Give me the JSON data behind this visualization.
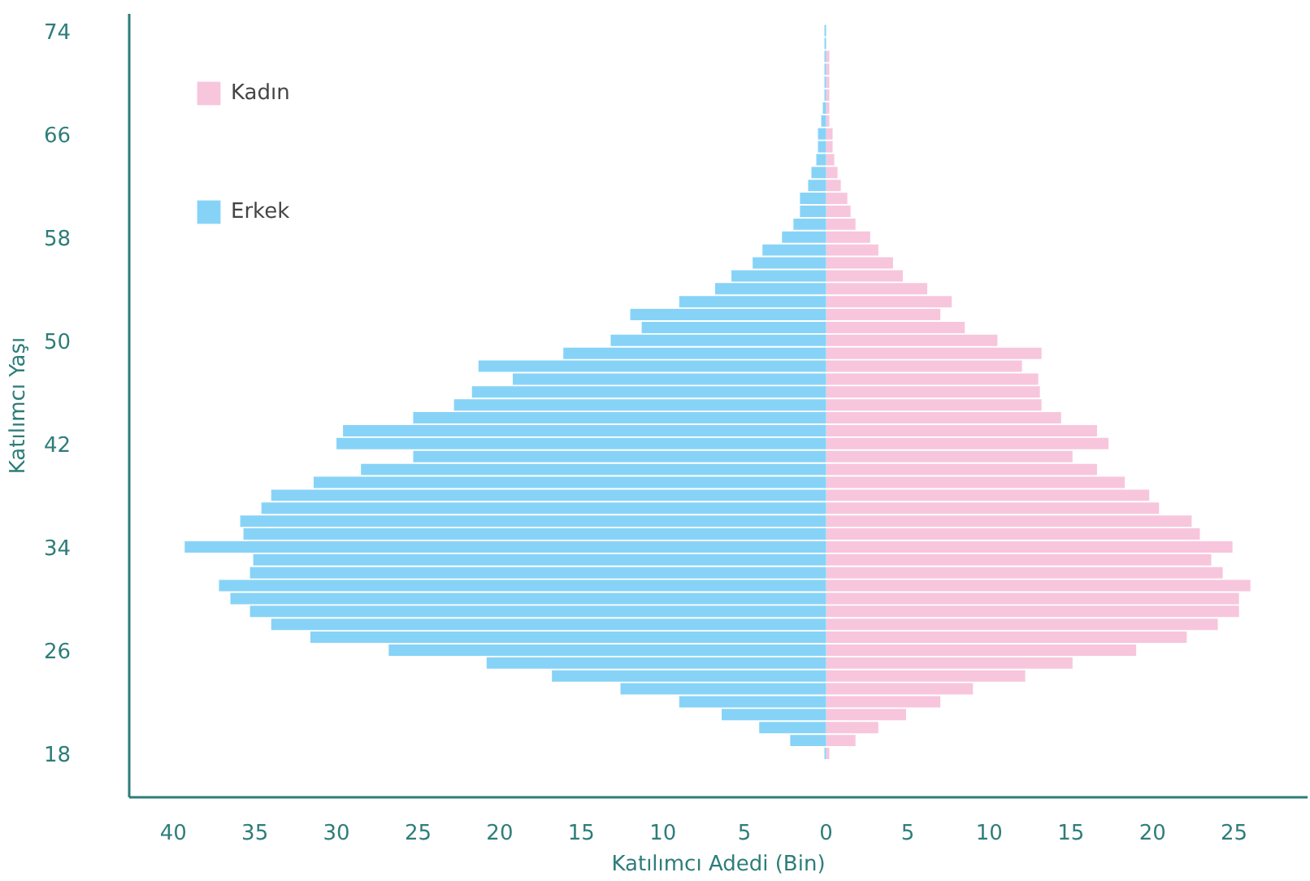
{
  "chart_data": {
    "type": "bar",
    "orientation": "horizontal",
    "xlabel": "Katılımcı Adedi (Bin)",
    "ylabel": "Katılımcı Yaşı",
    "x": [
      18,
      19,
      20,
      21,
      22,
      23,
      24,
      25,
      26,
      27,
      28,
      29,
      30,
      31,
      32,
      33,
      34,
      35,
      36,
      37,
      38,
      39,
      40,
      41,
      42,
      43,
      44,
      45,
      46,
      47,
      48,
      49,
      50,
      51,
      52,
      53,
      54,
      55,
      56,
      57,
      58,
      59,
      60,
      61,
      62,
      63,
      64,
      65,
      66,
      67,
      68,
      69,
      70,
      71,
      72,
      73,
      74
    ],
    "series": [
      {
        "name": "Kadın",
        "color": "#f7c6dc",
        "values": [
          0.2,
          1.8,
          3.2,
          4.9,
          7.0,
          9.0,
          12.2,
          15.1,
          19.0,
          22.1,
          24.0,
          25.3,
          25.3,
          26.0,
          24.3,
          23.6,
          24.9,
          22.9,
          22.4,
          20.4,
          19.8,
          18.3,
          16.6,
          15.1,
          17.3,
          16.6,
          14.4,
          13.2,
          13.1,
          13.0,
          12.0,
          13.2,
          10.5,
          8.5,
          7.0,
          7.7,
          6.2,
          4.7,
          4.1,
          3.2,
          2.7,
          1.8,
          1.5,
          1.3,
          0.9,
          0.7,
          0.5,
          0.4,
          0.4,
          0.2,
          0.2,
          0.2,
          0.2,
          0.2,
          0.2,
          null,
          null
        ]
      },
      {
        "name": "Erkek",
        "color": "#87d3f7",
        "values": [
          -0.1,
          -2.2,
          -4.1,
          -6.4,
          -9.0,
          -12.6,
          -16.8,
          -20.8,
          -26.8,
          -31.6,
          -34.0,
          -35.3,
          -36.5,
          -37.2,
          -35.3,
          -35.1,
          -39.3,
          -35.7,
          -35.9,
          -34.6,
          -34.0,
          -31.4,
          -28.5,
          -25.3,
          -30.0,
          -29.6,
          -25.3,
          -22.8,
          -21.7,
          -19.2,
          -21.3,
          -16.1,
          -13.2,
          -11.3,
          -12.0,
          -9.0,
          -6.8,
          -5.8,
          -4.5,
          -3.9,
          -2.7,
          -2.0,
          -1.6,
          -1.6,
          -1.1,
          -0.9,
          -0.6,
          -0.5,
          -0.5,
          -0.3,
          -0.2,
          -0.1,
          -0.1,
          -0.1,
          -0.1,
          -0.1,
          -0.1
        ]
      }
    ],
    "xlim": [
      -42.7,
      29.5
    ],
    "xticks": [
      {
        "value": -40,
        "label": "40"
      },
      {
        "value": -35,
        "label": "35"
      },
      {
        "value": -30,
        "label": "30"
      },
      {
        "value": -25,
        "label": "25"
      },
      {
        "value": -20,
        "label": "20"
      },
      {
        "value": -15,
        "label": "15"
      },
      {
        "value": -10,
        "label": "10"
      },
      {
        "value": -5,
        "label": "5"
      },
      0,
      5,
      10,
      15,
      20,
      25
    ],
    "ylim": [
      14.6,
      75.3
    ],
    "yticks": [
      18,
      26,
      34,
      42,
      50,
      58,
      66,
      74
    ],
    "grid": false,
    "legend": "top left",
    "stacked": true
  }
}
